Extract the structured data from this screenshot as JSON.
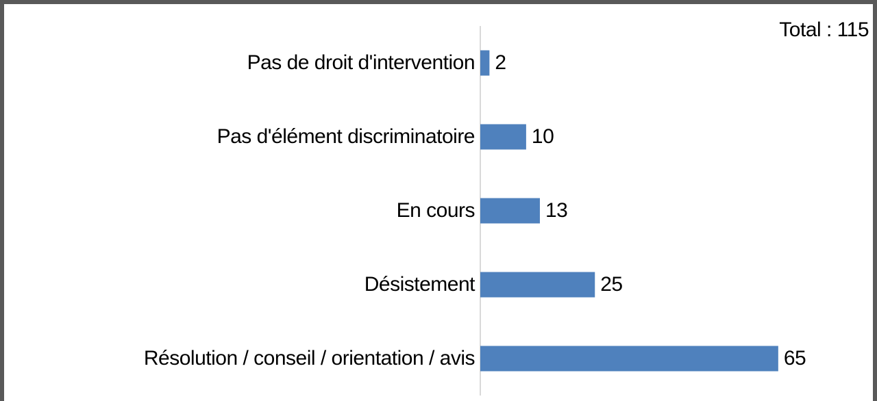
{
  "chart_data": {
    "type": "bar",
    "orientation": "horizontal",
    "annotation": "Total : 115",
    "categories": [
      "Pas de droit d'intervention",
      "Pas d'élément discriminatoire",
      "En cours",
      "Désistement",
      "Résolution / conseil / orientation / avis"
    ],
    "values": [
      2,
      10,
      13,
      25,
      65
    ],
    "color": "#4f81bd"
  }
}
